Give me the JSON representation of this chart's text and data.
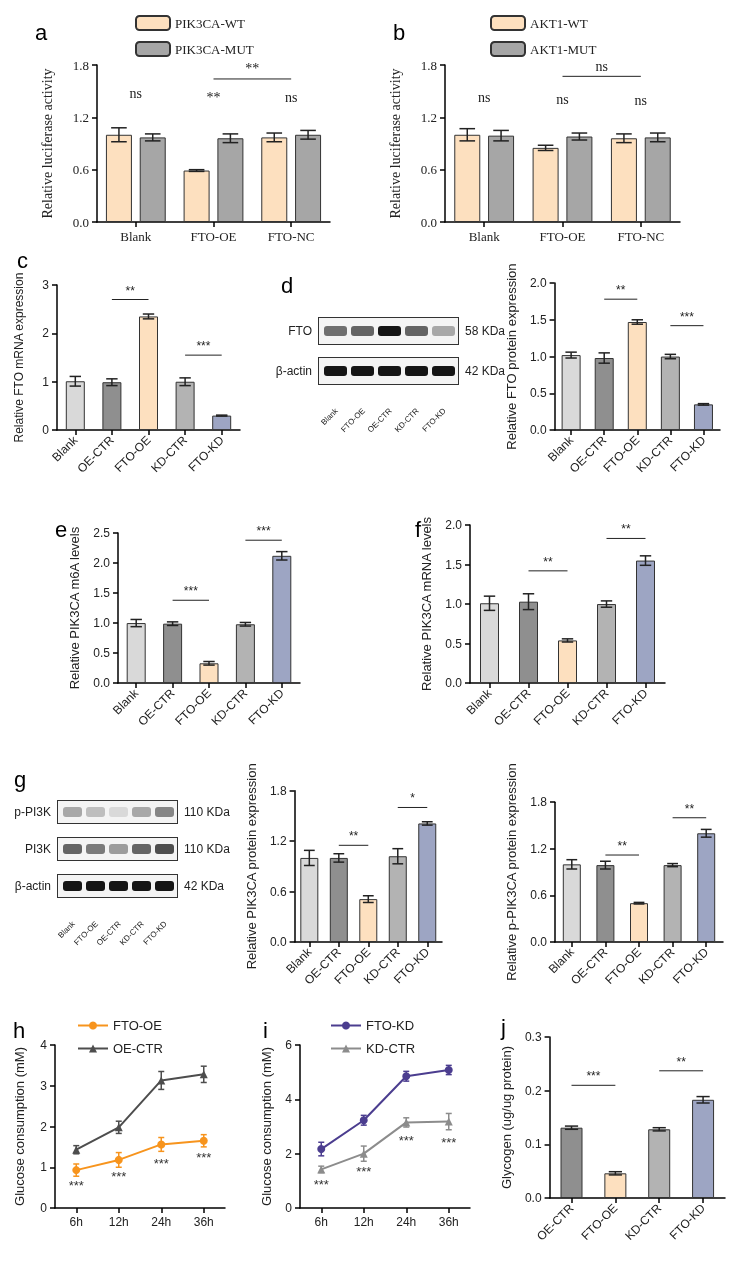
{
  "chart_data": [
    {
      "type": "bar",
      "title": "a",
      "ylabel": "Relative luciferase activity",
      "categories": [
        "Blank",
        "FTO-OE",
        "FTO-NC"
      ],
      "legend": "top",
      "ylim": [
        0,
        1.8
      ],
      "yticks": [
        {
          "value": 0,
          "label": "0.0"
        },
        {
          "value": 0.6,
          "label": "0.6"
        },
        {
          "value": 1.2,
          "label": "1.2"
        },
        {
          "value": 1.8,
          "label": "1.8"
        }
      ],
      "series": [
        {
          "name": "PIK3CA-WT",
          "color": "#fde0bf",
          "values": [
            1.0,
            0.59,
            0.97
          ],
          "errors": [
            0.08,
            0.01,
            0.05
          ]
        },
        {
          "name": "PIK3CA-MUT",
          "color": "#a6a6a6",
          "values": [
            0.97,
            0.96,
            1.0
          ],
          "errors": [
            0.04,
            0.05,
            0.05
          ]
        }
      ],
      "annotations": [
        "ns",
        "**",
        "**",
        "ns"
      ]
    },
    {
      "type": "bar",
      "title": "b",
      "ylabel": "Relative luciferase activity",
      "categories": [
        "Blank",
        "FTO-OE",
        "FTO-NC"
      ],
      "legend": "top",
      "ylim": [
        0,
        1.8
      ],
      "yticks": [
        {
          "value": 0,
          "label": "0.0"
        },
        {
          "value": 0.6,
          "label": "0.6"
        },
        {
          "value": 1.2,
          "label": "1.2"
        },
        {
          "value": 1.8,
          "label": "1.8"
        }
      ],
      "series": [
        {
          "name": "AKT1-WT",
          "color": "#fde0bf",
          "values": [
            1.0,
            0.85,
            0.96
          ],
          "errors": [
            0.07,
            0.03,
            0.05
          ]
        },
        {
          "name": "AKT1-MUT",
          "color": "#a6a6a6",
          "values": [
            0.99,
            0.98,
            0.97
          ],
          "errors": [
            0.06,
            0.04,
            0.05
          ]
        }
      ],
      "annotations": [
        "ns",
        "ns",
        "ns",
        "ns"
      ]
    },
    {
      "type": "bar",
      "title": "c",
      "ylabel": "Relative FTO mRNA expression",
      "categories": [
        "Blank",
        "OE-CTR",
        "FTO-OE",
        "KD-CTR",
        "FTO-KD"
      ],
      "ylim": [
        0,
        3
      ],
      "yticks": [
        0,
        1,
        2,
        3
      ],
      "values": [
        1.01,
        0.99,
        2.35,
        1.0,
        0.3
      ],
      "errors": [
        0.1,
        0.07,
        0.05,
        0.08,
        0.01
      ],
      "colors": [
        "#d9d9d9",
        "#8f8f8f",
        "#fde0bf",
        "#b3b3b3",
        "#9da5c3"
      ],
      "annotations": [
        "**",
        "***"
      ]
    },
    {
      "type": "other",
      "title": "d",
      "categories": [
        "Blank",
        "FTO-OE",
        "OE-CTR",
        "KD-CTR",
        "FTO-KD"
      ],
      "y_categories": [
        "FTO",
        "β-actin"
      ],
      "y2_categories": [
        "58 KDa",
        "42 KDa"
      ]
    },
    {
      "type": "bar",
      "ylabel": "Relative FTO protein expression",
      "categories": [
        "Blank",
        "OE-CTR",
        "FTO-OE",
        "KD-CTR",
        "FTO-KD"
      ],
      "ylim": [
        0,
        2
      ],
      "yticks": [
        {
          "value": 0,
          "label": "0.0"
        },
        {
          "value": 0.5,
          "label": "0.5"
        },
        {
          "value": 1,
          "label": "1.0"
        },
        {
          "value": 1.5,
          "label": "1.5"
        },
        {
          "value": 2,
          "label": "2.0"
        }
      ],
      "values": [
        1.02,
        0.98,
        1.47,
        1.0,
        0.35
      ],
      "errors": [
        0.04,
        0.07,
        0.03,
        0.03,
        0.01
      ],
      "colors": [
        "#d9d9d9",
        "#8f8f8f",
        "#fde0bf",
        "#b3b3b3",
        "#9da5c3"
      ],
      "annotations": [
        "**",
        "***"
      ]
    },
    {
      "type": "bar",
      "title": "e",
      "ylabel": "Relative PIK3CA m6A levels",
      "categories": [
        "Blank",
        "OE-CTR",
        "FTO-OE",
        "KD-CTR",
        "FTO-KD"
      ],
      "ylim": [
        0,
        2.5
      ],
      "yticks": [
        {
          "value": 0,
          "label": "0.0"
        },
        {
          "value": 0.5,
          "label": "0.5"
        },
        {
          "value": 1,
          "label": "1.0"
        },
        {
          "value": 1.5,
          "label": "1.5"
        },
        {
          "value": 2,
          "label": "2.0"
        },
        {
          "value": 2.5,
          "label": "2.5"
        }
      ],
      "values": [
        1.0,
        0.99,
        0.33,
        0.98,
        2.12
      ],
      "errors": [
        0.06,
        0.03,
        0.03,
        0.03,
        0.07
      ],
      "colors": [
        "#d9d9d9",
        "#8f8f8f",
        "#fde0bf",
        "#b3b3b3",
        "#9da5c3"
      ],
      "annotations": [
        "***",
        "***"
      ]
    },
    {
      "type": "bar",
      "title": "f",
      "ylabel": "Relative PIK3CA mRNA levels",
      "categories": [
        "Blank",
        "OE-CTR",
        "FTO-OE",
        "KD-CTR",
        "FTO-KD"
      ],
      "ylim": [
        0,
        2
      ],
      "yticks": [
        {
          "value": 0,
          "label": "0.0"
        },
        {
          "value": 0.5,
          "label": "0.5"
        },
        {
          "value": 1,
          "label": "1.0"
        },
        {
          "value": 1.5,
          "label": "1.5"
        },
        {
          "value": 2,
          "label": "2.0"
        }
      ],
      "values": [
        1.01,
        1.03,
        0.54,
        1.0,
        1.55
      ],
      "errors": [
        0.09,
        0.1,
        0.02,
        0.04,
        0.06
      ],
      "colors": [
        "#d9d9d9",
        "#8f8f8f",
        "#fde0bf",
        "#b3b3b3",
        "#9da5c3"
      ],
      "annotations": [
        "**",
        "**"
      ]
    },
    {
      "type": "other",
      "title": "g",
      "categories": [
        "Blank",
        "FTO-OE",
        "OE-CTR",
        "KD-CTR",
        "FTO-KD"
      ],
      "y_categories": [
        "p-PI3K",
        "PI3K",
        "β-actin"
      ],
      "y2_categories": [
        "110 KDa",
        "110 KDa",
        "42 KDa"
      ]
    },
    {
      "type": "bar",
      "ylabel": "Relative PIK3CA protein expression",
      "categories": [
        "Blank",
        "OE-CTR",
        "FTO-OE",
        "KD-CTR",
        "FTO-KD"
      ],
      "ylim": [
        0,
        1.8
      ],
      "yticks": [
        {
          "value": 0,
          "label": "0.0"
        },
        {
          "value": 0.6,
          "label": "0.6"
        },
        {
          "value": 1.2,
          "label": "1.2"
        },
        {
          "value": 1.8,
          "label": "1.8"
        }
      ],
      "values": [
        1.0,
        1.0,
        0.51,
        1.02,
        1.41
      ],
      "errors": [
        0.09,
        0.05,
        0.04,
        0.09,
        0.02
      ],
      "colors": [
        "#d9d9d9",
        "#8f8f8f",
        "#fde0bf",
        "#b3b3b3",
        "#9da5c3"
      ],
      "annotations": [
        "**",
        "*"
      ]
    },
    {
      "type": "bar",
      "ylabel": "Relative p-PIK3CA protein expression",
      "categories": [
        "Blank",
        "OE-CTR",
        "FTO-OE",
        "KD-CTR",
        "FTO-KD"
      ],
      "ylim": [
        0,
        1.8
      ],
      "yticks": [
        {
          "value": 0,
          "label": "0.0"
        },
        {
          "value": 0.6,
          "label": "0.6"
        },
        {
          "value": 1.2,
          "label": "1.2"
        },
        {
          "value": 1.8,
          "label": "1.8"
        }
      ],
      "values": [
        1.0,
        0.99,
        0.5,
        0.99,
        1.4
      ],
      "errors": [
        0.06,
        0.05,
        0.01,
        0.02,
        0.05
      ],
      "colors": [
        "#d9d9d9",
        "#8f8f8f",
        "#fde0bf",
        "#b3b3b3",
        "#9da5c3"
      ],
      "annotations": [
        "**",
        "**"
      ]
    },
    {
      "type": "line",
      "title": "h",
      "ylabel": "Glucose consumption (mM)",
      "categories": [
        "6h",
        "12h",
        "24h",
        "36h"
      ],
      "legend": "top left",
      "ylim": [
        0,
        4
      ],
      "yticks": [
        0,
        1,
        2,
        3,
        4
      ],
      "series": [
        {
          "name": "FTO-OE",
          "color": "#f7941d",
          "marker": "circle",
          "values": [
            0.93,
            1.18,
            1.56,
            1.65
          ],
          "errors": [
            0.15,
            0.18,
            0.17,
            0.15
          ]
        },
        {
          "name": "OE-CTR",
          "color": "#4d4d4d",
          "marker": "triangle",
          "values": [
            1.43,
            1.98,
            3.13,
            3.28
          ],
          "errors": [
            0.1,
            0.15,
            0.22,
            0.2
          ]
        }
      ],
      "annotations": [
        "***",
        "***",
        "***",
        "***"
      ]
    },
    {
      "type": "line",
      "title": "i",
      "ylabel": "Glucose consumption (mM)",
      "categories": [
        "6h",
        "12h",
        "24h",
        "36h"
      ],
      "legend": "top left",
      "ylim": [
        0,
        6
      ],
      "yticks": [
        0,
        2,
        4,
        6
      ],
      "series": [
        {
          "name": "FTO-KD",
          "color": "#4b3d8f",
          "marker": "circle",
          "values": [
            2.17,
            3.23,
            4.85,
            5.08
          ],
          "errors": [
            0.25,
            0.18,
            0.18,
            0.17
          ]
        },
        {
          "name": "KD-CTR",
          "color": "#8c8c8c",
          "marker": "triangle",
          "values": [
            1.42,
            2.0,
            3.15,
            3.18
          ],
          "errors": [
            0.12,
            0.28,
            0.17,
            0.3
          ]
        }
      ],
      "annotations": [
        "***",
        "***",
        "***",
        "***"
      ]
    },
    {
      "type": "bar",
      "title": "j",
      "ylabel": "Glycogen (ug/ug protein)",
      "categories": [
        "OE-CTR",
        "FTO-OE",
        "KD-CTR",
        "FTO-KD"
      ],
      "ylim": [
        0,
        0.3
      ],
      "yticks": [
        {
          "value": 0,
          "label": "0.0"
        },
        {
          "value": 0.1,
          "label": "0.1"
        },
        {
          "value": 0.2,
          "label": "0.2"
        },
        {
          "value": 0.3,
          "label": "0.3"
        }
      ],
      "values": [
        0.131,
        0.046,
        0.128,
        0.183
      ],
      "errors": [
        0.003,
        0.003,
        0.003,
        0.006
      ],
      "colors": [
        "#8f8f8f",
        "#fde0bf",
        "#b3b3b3",
        "#9da5c3"
      ],
      "annotations": [
        "***",
        "**"
      ]
    }
  ]
}
